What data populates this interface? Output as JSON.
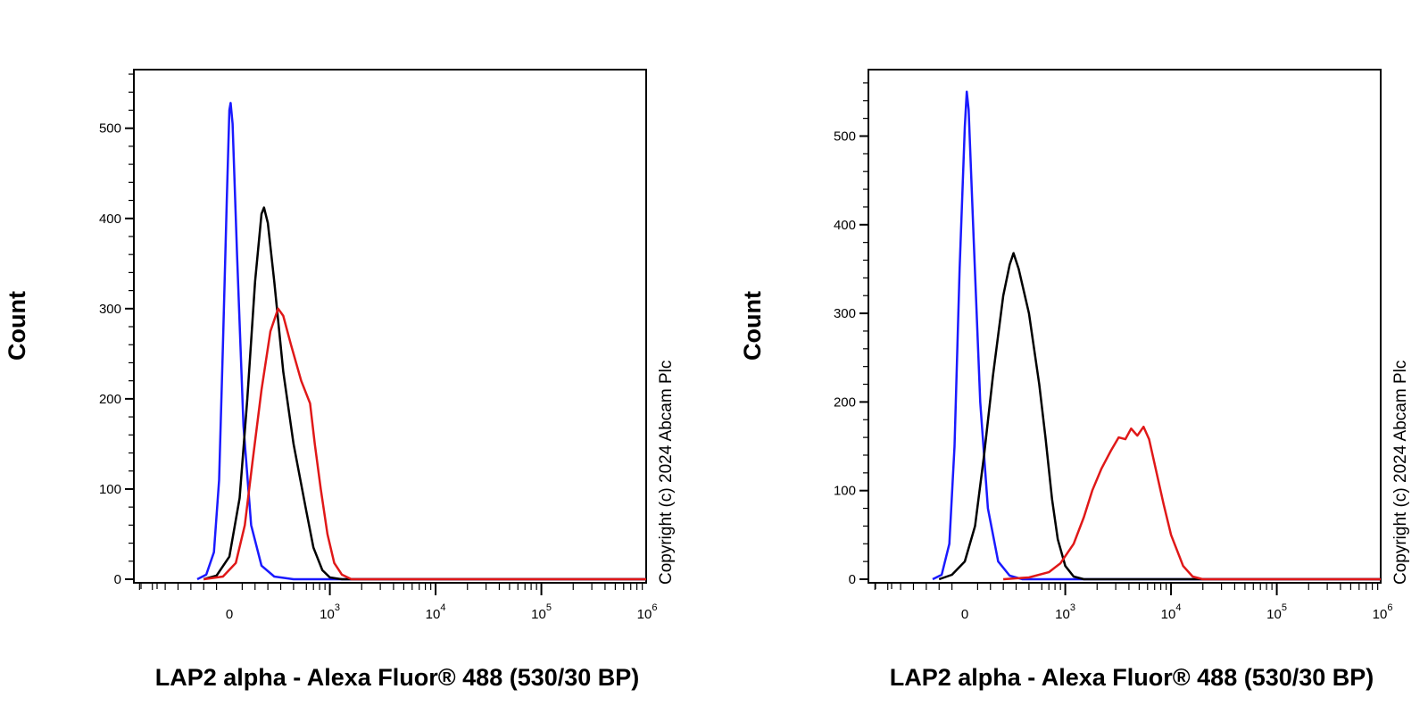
{
  "chart_data": [
    {
      "type": "line",
      "xlabel": "LAP2 alpha - Alexa Fluor® 488 (530/30 BP)",
      "ylabel": "Count",
      "copyright": "Copyright (c) 2024 Abcam Plc",
      "x_scale": "biexponential",
      "x_ticks": [
        {
          "base": "0",
          "exp": ""
        },
        {
          "base": "10",
          "exp": "3"
        },
        {
          "base": "10",
          "exp": "4"
        },
        {
          "base": "10",
          "exp": "5"
        },
        {
          "base": "10",
          "exp": "6"
        }
      ],
      "y_ticks": [
        "0",
        "100",
        "200",
        "300",
        "400",
        "500"
      ],
      "ylim": [
        0,
        565
      ],
      "series": [
        {
          "color": "#1a1aff",
          "points": [
            [
              -250,
              0
            ],
            [
              -180,
              5
            ],
            [
              -120,
              30
            ],
            [
              -80,
              110
            ],
            [
              -50,
              260
            ],
            [
              -20,
              420
            ],
            [
              0,
              520
            ],
            [
              10,
              528
            ],
            [
              25,
              505
            ],
            [
              60,
              360
            ],
            [
              110,
              170
            ],
            [
              170,
              60
            ],
            [
              250,
              15
            ],
            [
              350,
              3
            ],
            [
              500,
              0
            ],
            [
              1000000,
              0
            ]
          ]
        },
        {
          "color": "#000000",
          "points": [
            [
              -200,
              0
            ],
            [
              -100,
              4
            ],
            [
              0,
              25
            ],
            [
              80,
              90
            ],
            [
              140,
              200
            ],
            [
              200,
              330
            ],
            [
              250,
              405
            ],
            [
              270,
              412
            ],
            [
              300,
              395
            ],
            [
              350,
              330
            ],
            [
              420,
              230
            ],
            [
              500,
              150
            ],
            [
              600,
              75
            ],
            [
              700,
              35
            ],
            [
              850,
              10
            ],
            [
              1000,
              2
            ],
            [
              1300,
              0
            ],
            [
              1000000,
              0
            ]
          ]
        },
        {
          "color": "#e01818",
          "points": [
            [
              -200,
              0
            ],
            [
              -50,
              3
            ],
            [
              50,
              18
            ],
            [
              120,
              60
            ],
            [
              180,
              130
            ],
            [
              250,
              210
            ],
            [
              320,
              275
            ],
            [
              380,
              300
            ],
            [
              420,
              292
            ],
            [
              480,
              260
            ],
            [
              560,
              220
            ],
            [
              650,
              195
            ],
            [
              720,
              150
            ],
            [
              820,
              100
            ],
            [
              950,
              50
            ],
            [
              1100,
              18
            ],
            [
              1300,
              5
            ],
            [
              1600,
              0
            ],
            [
              1000000,
              0
            ]
          ]
        }
      ]
    },
    {
      "type": "line",
      "xlabel": "LAP2 alpha - Alexa Fluor® 488 (530/30 BP)",
      "ylabel": "Count",
      "copyright": "Copyright (c) 2024 Abcam Plc",
      "x_scale": "biexponential",
      "x_ticks": [
        {
          "base": "0",
          "exp": ""
        },
        {
          "base": "10",
          "exp": "3"
        },
        {
          "base": "10",
          "exp": "4"
        },
        {
          "base": "10",
          "exp": "5"
        },
        {
          "base": "10",
          "exp": "6"
        }
      ],
      "y_ticks": [
        "0",
        "100",
        "200",
        "300",
        "400",
        "500"
      ],
      "ylim": [
        0,
        575
      ],
      "series": [
        {
          "color": "#1a1aff",
          "points": [
            [
              -250,
              0
            ],
            [
              -180,
              5
            ],
            [
              -120,
              40
            ],
            [
              -80,
              150
            ],
            [
              -40,
              350
            ],
            [
              0,
              510
            ],
            [
              15,
              550
            ],
            [
              30,
              530
            ],
            [
              70,
              380
            ],
            [
              120,
              200
            ],
            [
              180,
              80
            ],
            [
              260,
              20
            ],
            [
              350,
              4
            ],
            [
              450,
              0
            ],
            [
              1000000,
              0
            ]
          ]
        },
        {
          "color": "#000000",
          "points": [
            [
              -200,
              0
            ],
            [
              -100,
              5
            ],
            [
              0,
              20
            ],
            [
              80,
              60
            ],
            [
              150,
              140
            ],
            [
              220,
              230
            ],
            [
              300,
              320
            ],
            [
              350,
              355
            ],
            [
              380,
              368
            ],
            [
              420,
              350
            ],
            [
              500,
              300
            ],
            [
              580,
              220
            ],
            [
              650,
              160
            ],
            [
              750,
              90
            ],
            [
              850,
              45
            ],
            [
              1000,
              15
            ],
            [
              1200,
              3
            ],
            [
              1500,
              0
            ],
            [
              1000000,
              0
            ]
          ]
        },
        {
          "color": "#e01818",
          "points": [
            [
              300,
              0
            ],
            [
              500,
              2
            ],
            [
              700,
              8
            ],
            [
              900,
              18
            ],
            [
              1200,
              40
            ],
            [
              1500,
              70
            ],
            [
              1800,
              100
            ],
            [
              2200,
              125
            ],
            [
              2700,
              145
            ],
            [
              3200,
              160
            ],
            [
              3700,
              158
            ],
            [
              4200,
              170
            ],
            [
              4800,
              162
            ],
            [
              5500,
              172
            ],
            [
              6200,
              158
            ],
            [
              7000,
              130
            ],
            [
              8500,
              85
            ],
            [
              10000,
              50
            ],
            [
              13000,
              15
            ],
            [
              16000,
              3
            ],
            [
              20000,
              0
            ],
            [
              1000000,
              0
            ]
          ]
        }
      ]
    }
  ]
}
